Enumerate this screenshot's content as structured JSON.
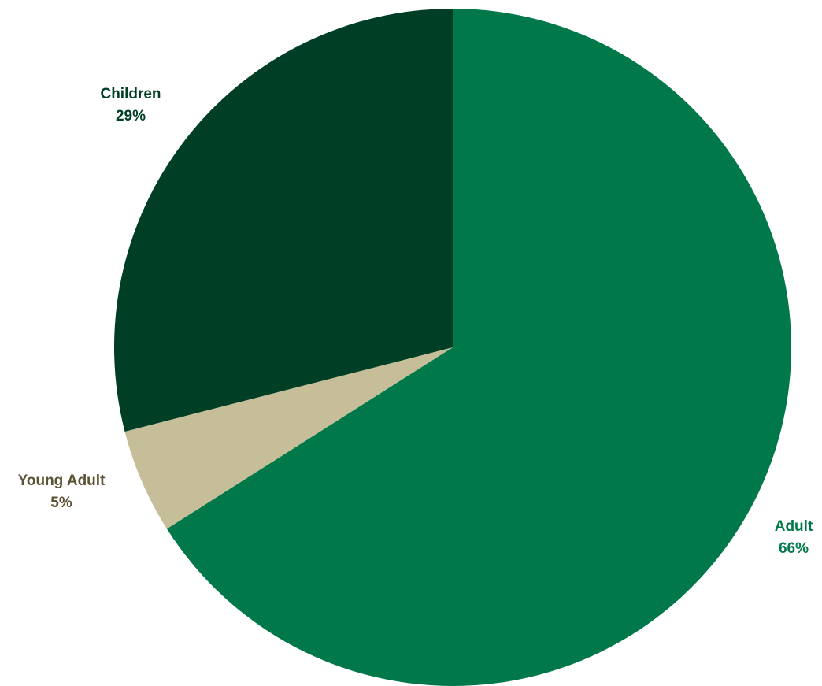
{
  "chart_data": {
    "type": "pie",
    "title": "",
    "start_angle": "12 o'clock",
    "direction": "clockwise",
    "slices": [
      {
        "name": "Adult",
        "value": 66,
        "label": "66%",
        "color": "#00784A",
        "label_color": "#00784A"
      },
      {
        "name": "Young Adult",
        "value": 5,
        "label": "5%",
        "color": "#C5BE98",
        "label_color": "#5E5236"
      },
      {
        "name": "Children",
        "value": 29,
        "label": "29%",
        "color": "#003F25",
        "label_color": "#003F25"
      }
    ],
    "legend": "none"
  }
}
